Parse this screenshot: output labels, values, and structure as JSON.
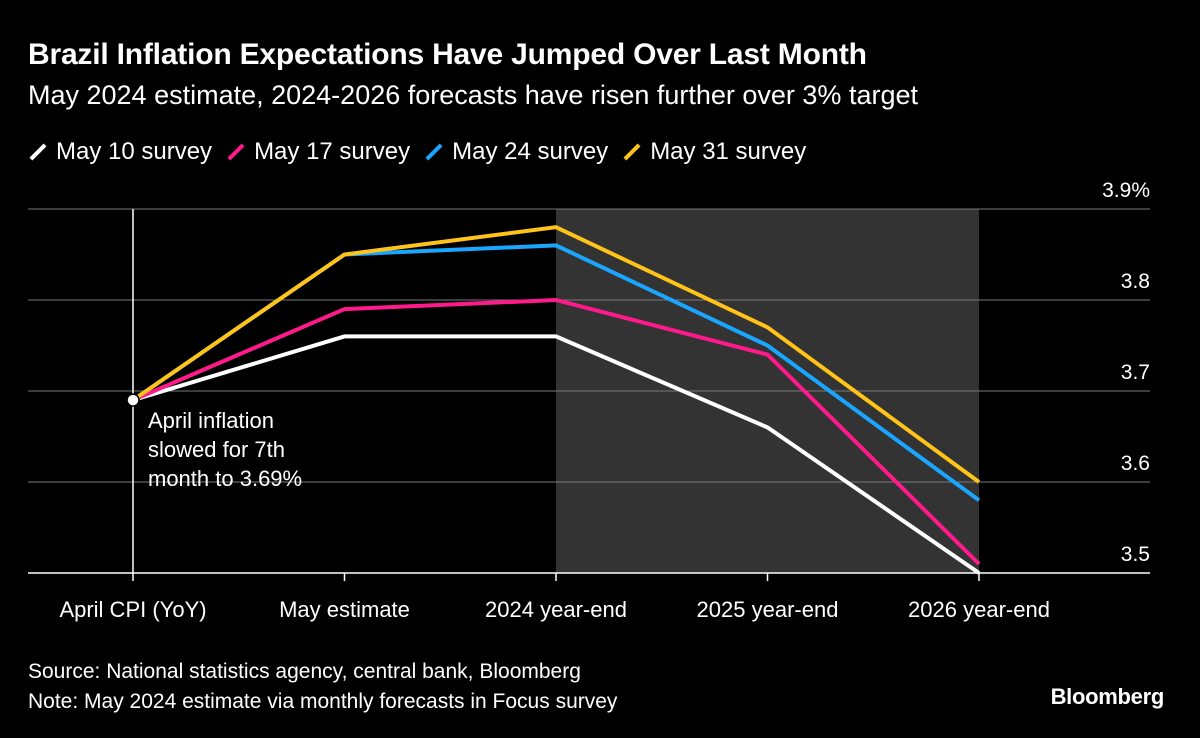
{
  "header": {
    "title": "Brazil Inflation Expectations Have Jumped Over Last Month",
    "subtitle": "May 2024 estimate, 2024-2026 forecasts have risen further over 3% target"
  },
  "footer": {
    "source": "Source: National statistics agency, central bank, Bloomberg",
    "note": "Note: May 2024 estimate via monthly forecasts in Focus survey",
    "brand": "Bloomberg"
  },
  "colors": {
    "background": "#000000",
    "grid": "#7a7a7a",
    "forecast_shading": "#333333"
  },
  "chart_data": {
    "type": "line",
    "categories": [
      "April CPI (YoY)",
      "May estimate",
      "2024 year-end",
      "2025 year-end",
      "2026 year-end"
    ],
    "series": [
      {
        "name": "May 10 survey",
        "color": "#ffffff",
        "values": [
          3.69,
          3.76,
          3.76,
          3.66,
          3.5
        ]
      },
      {
        "name": "May 17 survey",
        "color": "#ff1a8c",
        "values": [
          3.69,
          3.79,
          3.8,
          3.74,
          3.51
        ]
      },
      {
        "name": "May 24 survey",
        "color": "#1aa6ff",
        "values": [
          3.69,
          3.85,
          3.86,
          3.75,
          3.58
        ]
      },
      {
        "name": "May 31 survey",
        "color": "#ffc31a",
        "values": [
          3.69,
          3.85,
          3.88,
          3.77,
          3.6
        ]
      }
    ],
    "ylim": [
      3.5,
      3.9
    ],
    "yticks": [
      {
        "value": 3.5,
        "label": "3.5"
      },
      {
        "value": 3.6,
        "label": "3.6"
      },
      {
        "value": 3.7,
        "label": "3.7"
      },
      {
        "value": 3.8,
        "label": "3.8"
      },
      {
        "value": 3.9,
        "label": "3.9%"
      }
    ],
    "y_axis_side": "right",
    "grid": true,
    "legend_position": "top-left",
    "shaded_categories": [
      "2024 year-end",
      "2026 year-end"
    ],
    "annotation": {
      "text_lines": [
        "April inflation",
        "slowed for 7th",
        "month to 3.69%"
      ],
      "category": "April CPI (YoY)",
      "value": 3.69
    }
  }
}
